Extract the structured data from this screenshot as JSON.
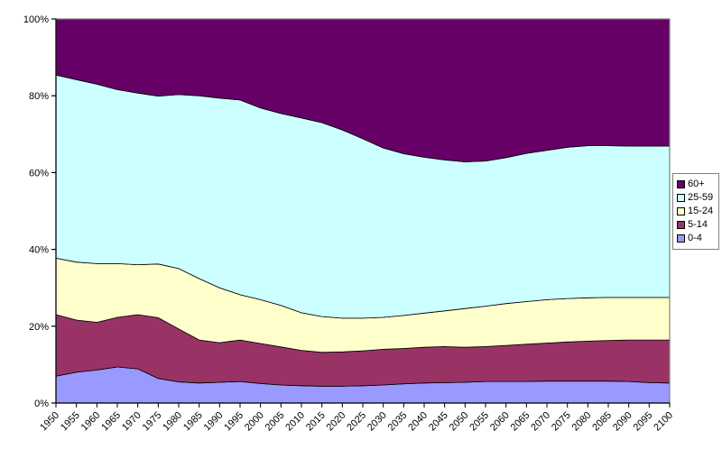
{
  "chart_data": {
    "type": "area",
    "stacking": "percent",
    "title": "",
    "xlabel": "",
    "ylabel": "",
    "categories": [
      "1950",
      "1955",
      "1960",
      "1965",
      "1970",
      "1975",
      "1980",
      "1985",
      "1990",
      "1995",
      "2000",
      "2005",
      "2010",
      "2015",
      "2020",
      "2025",
      "2030",
      "2035",
      "2040",
      "2045",
      "2050",
      "2055",
      "2060",
      "2065",
      "2070",
      "2075",
      "2080",
      "2085",
      "2090",
      "2095",
      "2100"
    ],
    "series": [
      {
        "name": "0-4",
        "color": "#9999FF",
        "values": [
          7.0,
          8.0,
          8.6,
          9.4,
          8.9,
          6.4,
          5.5,
          5.2,
          5.4,
          5.6,
          5.1,
          4.7,
          4.5,
          4.4,
          4.4,
          4.5,
          4.7,
          5.0,
          5.2,
          5.3,
          5.4,
          5.6,
          5.6,
          5.6,
          5.7,
          5.7,
          5.7,
          5.7,
          5.6,
          5.3,
          5.2
        ]
      },
      {
        "name": "5-14",
        "color": "#993366",
        "values": [
          16.0,
          13.6,
          12.4,
          12.9,
          14.1,
          15.8,
          13.8,
          11.2,
          10.3,
          10.8,
          10.4,
          9.9,
          9.2,
          8.8,
          8.9,
          9.1,
          9.3,
          9.2,
          9.3,
          9.4,
          9.1,
          9.1,
          9.4,
          9.7,
          9.9,
          10.2,
          10.4,
          10.6,
          10.8,
          11.1,
          11.2
        ]
      },
      {
        "name": "15-24",
        "color": "#FFFFCC",
        "values": [
          14.7,
          15.1,
          15.3,
          14.0,
          13.0,
          14.0,
          15.7,
          16.0,
          14.3,
          11.8,
          11.4,
          10.8,
          9.8,
          9.3,
          8.8,
          8.5,
          8.3,
          8.6,
          8.9,
          9.3,
          10.1,
          10.5,
          10.9,
          11.1,
          11.3,
          11.3,
          11.3,
          11.2,
          11.1,
          11.1,
          11.1
        ]
      },
      {
        "name": "25-59",
        "color": "#CCFFFF",
        "values": [
          47.7,
          47.5,
          46.7,
          45.3,
          44.7,
          43.7,
          45.3,
          47.6,
          49.4,
          50.7,
          49.9,
          50.0,
          50.7,
          50.5,
          49.0,
          46.7,
          44.1,
          42.1,
          40.6,
          39.3,
          38.2,
          37.8,
          38.0,
          38.6,
          38.9,
          39.4,
          39.6,
          39.5,
          39.4,
          39.4,
          39.4
        ]
      },
      {
        "name": "60+",
        "color": "#660066",
        "values": [
          14.6,
          15.8,
          17.0,
          18.4,
          19.3,
          20.1,
          19.7,
          20.0,
          20.6,
          21.1,
          23.2,
          24.6,
          25.8,
          27.0,
          28.9,
          31.2,
          33.6,
          35.1,
          36.0,
          36.7,
          37.2,
          37.0,
          36.1,
          35.0,
          34.2,
          33.4,
          33.0,
          33.0,
          33.1,
          33.1,
          33.1
        ]
      }
    ],
    "y_axis": {
      "min": 0,
      "max": 100,
      "tick_step": 20,
      "tick_labels": [
        "0%",
        "20%",
        "40%",
        "60%",
        "80%",
        "100%"
      ]
    },
    "x_axis": {
      "first": "1950",
      "last": "2100",
      "label_rotation_deg": 45
    },
    "legend": {
      "position": "right",
      "items": [
        {
          "label": "60+",
          "color": "#660066"
        },
        {
          "label": "25-59",
          "color": "#CCFFFF"
        },
        {
          "label": "15-24",
          "color": "#FFFFCC"
        },
        {
          "label": "5-14",
          "color": "#993366"
        },
        {
          "label": "0-4",
          "color": "#9999FF"
        }
      ]
    },
    "styles": {
      "area_outline": "#000000",
      "plot_border": "#808080",
      "axis_color": "#000000",
      "text_color": "#000000",
      "background": "#FFFFFF"
    },
    "grid": "off"
  }
}
